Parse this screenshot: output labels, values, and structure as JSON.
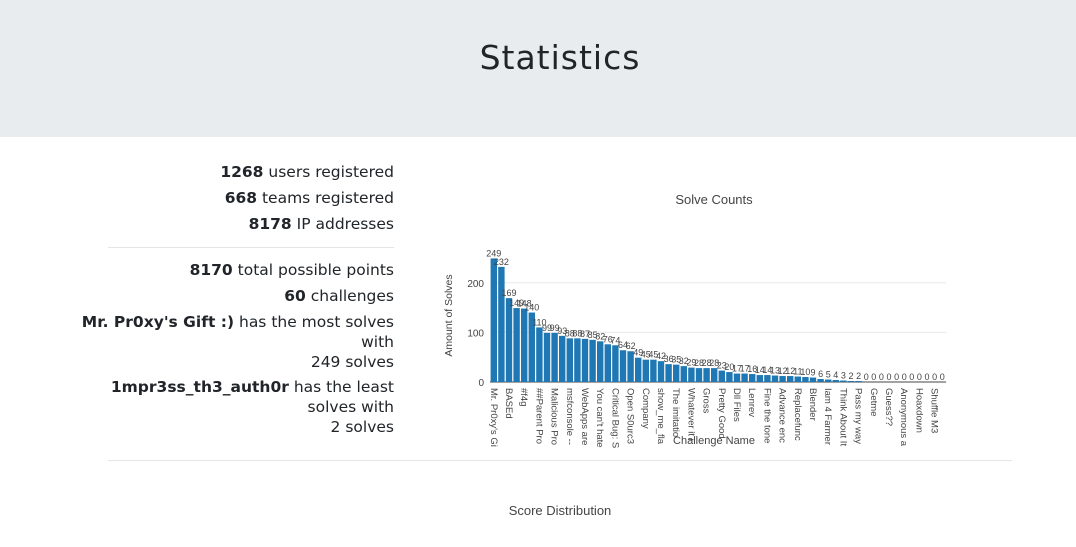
{
  "header": {
    "title": "Statistics"
  },
  "summary": {
    "users_count": "1268",
    "users_label": " users registered",
    "teams_count": "668",
    "teams_label": " teams registered",
    "ips_count": "8178",
    "ips_label": " IP addresses",
    "points_count": "8170",
    "points_label": " total possible points",
    "challenges_count": "60",
    "challenges_label": " challenges",
    "most_name": "Mr. Pr0xy's Gift :)",
    "most_label_1": " has the most solves",
    "most_label_2": "with",
    "most_solves": "249 solves",
    "least_name": "1mpr3ss_th3_auth0r",
    "least_label_1": " has the least",
    "least_label_2": "solves with",
    "least_solves": "2 solves"
  },
  "score_distribution": {
    "title": "Score Distribution"
  },
  "chart_data": {
    "type": "bar",
    "title": "Solve Counts",
    "xlabel": "Challenge Name",
    "ylabel": "Amount of Solves",
    "ylim": [
      0,
      260
    ],
    "yticks": [
      0,
      100,
      200
    ],
    "grid": true,
    "bar_color": "#1f77b4",
    "values": [
      249,
      232,
      169,
      149,
      148,
      140,
      110,
      99,
      99,
      93,
      88,
      88,
      87,
      85,
      82,
      76,
      74,
      64,
      62,
      49,
      45,
      45,
      42,
      36,
      35,
      32,
      29,
      28,
      28,
      28,
      23,
      20,
      17,
      17,
      16,
      14,
      14,
      13,
      12,
      12,
      11,
      10,
      9,
      6,
      5,
      4,
      3,
      2,
      2,
      0,
      0,
      0,
      0,
      0,
      0,
      0,
      0,
      0,
      0,
      0
    ],
    "value_labels": [
      "249",
      "232",
      "169",
      "149",
      "148",
      "140",
      "110",
      "99",
      "99",
      "93",
      "88",
      "88",
      "87",
      "85",
      "82",
      "76",
      "74",
      "64",
      "62",
      "49",
      "45",
      "45",
      "42",
      "36",
      "35",
      "32",
      "29",
      "28",
      "28",
      "28",
      "23",
      "20",
      "17",
      "17",
      "16",
      "14",
      "14",
      "13",
      "12",
      "12",
      "11",
      "10",
      "9",
      "6",
      "5",
      "4",
      "3",
      "2",
      "2",
      "0",
      "0",
      "0",
      "0",
      "0",
      "0",
      "0",
      "0",
      "0",
      "0",
      "0"
    ],
    "categories": [
      "Mr. Pr0xy's Gi",
      "",
      "BASEd",
      "",
      "#f4g",
      "",
      "##Parent Pro",
      "",
      "Malicious Pro",
      "",
      "msfconsole --",
      "",
      "WebApps are",
      "",
      "You can't hate",
      "",
      "Critical Bug: S",
      "",
      "Open S0urc3",
      "",
      "Company",
      "",
      "show_me_fla",
      "",
      "The imitatio",
      "",
      "Whatever it i",
      "",
      "Gross",
      "",
      "Pretty Good",
      "",
      "Dll Files",
      "",
      "Lenrev",
      "",
      "Fine the tone",
      "",
      "Advance enc",
      "",
      "Replacefunc",
      "",
      "Blender",
      "",
      "Iam 4 Farmer",
      "",
      "Think About It",
      "",
      "Pass my way",
      "",
      "Getme",
      "",
      "Guess??",
      "",
      "Anonymous a",
      "",
      "Hoaxdown",
      "",
      "Shuffle M3",
      ""
    ]
  }
}
